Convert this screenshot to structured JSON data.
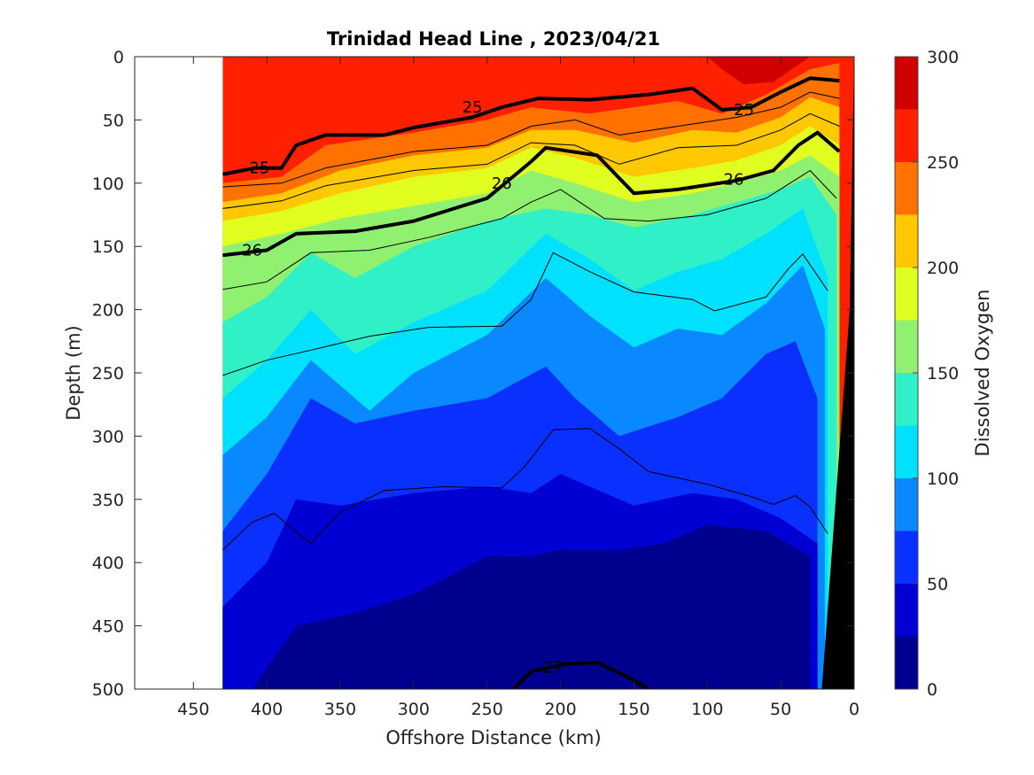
{
  "chart_data": {
    "type": "contour",
    "title": "Trinidad Head Line , 2023/04/21",
    "xlabel": "Offshore Distance (km)",
    "ylabel": "Depth (m)",
    "colorbar_label": "Dissolved Oxygen",
    "xlim": [
      490,
      0
    ],
    "ylim": [
      500,
      0
    ],
    "x_reversed": true,
    "y_reversed": true,
    "xticks": [
      450,
      400,
      350,
      300,
      250,
      200,
      150,
      100,
      50,
      0
    ],
    "yticks": [
      0,
      50,
      100,
      150,
      200,
      250,
      300,
      350,
      400,
      450,
      500
    ],
    "colorbar_ticks": [
      0,
      50,
      100,
      150,
      200,
      250,
      300
    ],
    "colorbar_range": [
      0,
      300
    ],
    "data_extent_km": [
      430,
      0
    ],
    "oxygen_levels": [
      {
        "value": 0,
        "color": "#00008f"
      },
      {
        "value": 25,
        "color": "#0000d2"
      },
      {
        "value": 50,
        "color": "#0a30ff"
      },
      {
        "value": 75,
        "color": "#0a88ff"
      },
      {
        "value": 100,
        "color": "#00e0ff"
      },
      {
        "value": 125,
        "color": "#30f0c8"
      },
      {
        "value": 150,
        "color": "#90f070"
      },
      {
        "value": 175,
        "color": "#e0ff20"
      },
      {
        "value": 200,
        "color": "#ffc800"
      },
      {
        "value": 225,
        "color": "#ff7200"
      },
      {
        "value": 250,
        "color": "#ff2000"
      },
      {
        "value": 275,
        "color": "#d00000"
      }
    ],
    "oxygen_contour_tops_m": [
      {
        "min_value": 275,
        "points": [
          [
            430,
            0
          ],
          [
            0,
            0
          ]
        ],
        "note": "surface band"
      },
      {
        "min_value": 250,
        "points": [
          [
            430,
            100
          ],
          [
            390,
            95
          ],
          [
            360,
            70
          ],
          [
            300,
            60
          ],
          [
            250,
            50
          ],
          [
            220,
            40
          ],
          [
            180,
            45
          ],
          [
            150,
            40
          ],
          [
            120,
            35
          ],
          [
            90,
            45
          ],
          [
            60,
            30
          ],
          [
            30,
            10
          ],
          [
            10,
            5
          ]
        ]
      },
      {
        "min_value": 225,
        "points": [
          [
            430,
            115
          ],
          [
            390,
            108
          ],
          [
            350,
            90
          ],
          [
            300,
            78
          ],
          [
            250,
            72
          ],
          [
            220,
            58
          ],
          [
            190,
            58
          ],
          [
            150,
            68
          ],
          [
            110,
            58
          ],
          [
            80,
            60
          ],
          [
            50,
            48
          ],
          [
            30,
            32
          ],
          [
            10,
            40
          ]
        ]
      },
      {
        "min_value": 200,
        "points": [
          [
            430,
            130
          ],
          [
            390,
            122
          ],
          [
            350,
            108
          ],
          [
            300,
            95
          ],
          [
            250,
            88
          ],
          [
            220,
            72
          ],
          [
            190,
            80
          ],
          [
            150,
            95
          ],
          [
            110,
            88
          ],
          [
            80,
            82
          ],
          [
            50,
            70
          ],
          [
            30,
            55
          ],
          [
            10,
            70
          ]
        ]
      },
      {
        "min_value": 175,
        "points": [
          [
            430,
            150
          ],
          [
            390,
            140
          ],
          [
            350,
            128
          ],
          [
            300,
            118
          ],
          [
            250,
            108
          ],
          [
            220,
            90
          ],
          [
            190,
            100
          ],
          [
            150,
            115
          ],
          [
            110,
            108
          ],
          [
            80,
            100
          ],
          [
            50,
            90
          ],
          [
            30,
            78
          ],
          [
            10,
            95
          ]
        ]
      },
      {
        "min_value": 150,
        "points": [
          [
            430,
            210
          ],
          [
            400,
            190
          ],
          [
            370,
            155
          ],
          [
            340,
            175
          ],
          [
            300,
            150
          ],
          [
            250,
            130
          ],
          [
            210,
            120
          ],
          [
            180,
            125
          ],
          [
            150,
            135
          ],
          [
            110,
            125
          ],
          [
            80,
            115
          ],
          [
            50,
            105
          ],
          [
            30,
            95
          ],
          [
            12,
            125
          ]
        ]
      },
      {
        "min_value": 125,
        "points": [
          [
            430,
            270
          ],
          [
            400,
            240
          ],
          [
            370,
            200
          ],
          [
            340,
            235
          ],
          [
            300,
            210
          ],
          [
            250,
            185
          ],
          [
            210,
            140
          ],
          [
            180,
            160
          ],
          [
            150,
            185
          ],
          [
            120,
            170
          ],
          [
            90,
            160
          ],
          [
            60,
            140
          ],
          [
            35,
            120
          ],
          [
            18,
            175
          ]
        ]
      },
      {
        "min_value": 100,
        "points": [
          [
            430,
            315
          ],
          [
            400,
            285
          ],
          [
            370,
            240
          ],
          [
            350,
            260
          ],
          [
            330,
            280
          ],
          [
            300,
            250
          ],
          [
            250,
            220
          ],
          [
            210,
            175
          ],
          [
            180,
            205
          ],
          [
            150,
            230
          ],
          [
            120,
            215
          ],
          [
            90,
            220
          ],
          [
            60,
            195
          ],
          [
            35,
            165
          ],
          [
            20,
            215
          ]
        ]
      },
      {
        "min_value": 75,
        "points": [
          [
            430,
            375
          ],
          [
            400,
            330
          ],
          [
            370,
            270
          ],
          [
            340,
            290
          ],
          [
            300,
            280
          ],
          [
            250,
            270
          ],
          [
            210,
            245
          ],
          [
            190,
            270
          ],
          [
            160,
            300
          ],
          [
            120,
            285
          ],
          [
            90,
            270
          ],
          [
            60,
            235
          ],
          [
            40,
            225
          ],
          [
            25,
            270
          ]
        ]
      },
      {
        "min_value": 50,
        "points": [
          [
            430,
            435
          ],
          [
            400,
            400
          ],
          [
            380,
            350
          ],
          [
            350,
            355
          ],
          [
            300,
            345
          ],
          [
            250,
            340
          ],
          [
            220,
            345
          ],
          [
            200,
            330
          ],
          [
            180,
            340
          ],
          [
            150,
            355
          ],
          [
            110,
            345
          ],
          [
            80,
            350
          ],
          [
            50,
            365
          ],
          [
            25,
            385
          ]
        ]
      },
      {
        "min_value": 25,
        "points": [
          [
            410,
            500
          ],
          [
            380,
            450
          ],
          [
            340,
            440
          ],
          [
            300,
            425
          ],
          [
            250,
            395
          ],
          [
            220,
            395
          ],
          [
            200,
            390
          ],
          [
            160,
            390
          ],
          [
            130,
            385
          ],
          [
            100,
            370
          ],
          [
            60,
            375
          ],
          [
            30,
            395
          ]
        ]
      },
      {
        "min_value": 0,
        "points": [
          [
            235,
            500
          ],
          [
            215,
            485
          ],
          [
            185,
            480
          ],
          [
            160,
            490
          ],
          [
            150,
            500
          ]
        ]
      }
    ],
    "density_contours": [
      {
        "label": "25",
        "bold": true,
        "points": [
          [
            430,
            93
          ],
          [
            408,
            88
          ],
          [
            390,
            88
          ],
          [
            380,
            70
          ],
          [
            360,
            62
          ],
          [
            320,
            62
          ],
          [
            300,
            56
          ],
          [
            260,
            48
          ],
          [
            240,
            40
          ],
          [
            215,
            33
          ],
          [
            180,
            34
          ],
          [
            140,
            30
          ],
          [
            110,
            25
          ],
          [
            90,
            42
          ],
          [
            70,
            40
          ],
          [
            50,
            28
          ],
          [
            30,
            17
          ],
          [
            10,
            19
          ]
        ]
      },
      {
        "label": "26",
        "bold": true,
        "points": [
          [
            430,
            157
          ],
          [
            400,
            153
          ],
          [
            380,
            140
          ],
          [
            340,
            138
          ],
          [
            300,
            130
          ],
          [
            250,
            112
          ],
          [
            220,
            83
          ],
          [
            210,
            72
          ],
          [
            175,
            78
          ],
          [
            150,
            108
          ],
          [
            120,
            105
          ],
          [
            80,
            98
          ],
          [
            55,
            90
          ],
          [
            38,
            70
          ],
          [
            25,
            60
          ],
          [
            10,
            75
          ]
        ]
      },
      {
        "label": "27",
        "bold": true,
        "points": [
          [
            232,
            500
          ],
          [
            220,
            486
          ],
          [
            195,
            480
          ],
          [
            175,
            479
          ],
          [
            155,
            490
          ],
          [
            140,
            500
          ]
        ]
      }
    ],
    "thin_contours": [
      [
        [
          430,
          103
        ],
        [
          390,
          100
        ],
        [
          360,
          88
        ],
        [
          300,
          75
        ],
        [
          250,
          70
        ],
        [
          220,
          55
        ],
        [
          190,
          50
        ],
        [
          160,
          62
        ],
        [
          120,
          55
        ],
        [
          80,
          48
        ],
        [
          50,
          40
        ],
        [
          30,
          28
        ],
        [
          10,
          33
        ]
      ],
      [
        [
          430,
          120
        ],
        [
          390,
          114
        ],
        [
          360,
          102
        ],
        [
          300,
          90
        ],
        [
          250,
          85
        ],
        [
          220,
          68
        ],
        [
          190,
          70
        ],
        [
          160,
          85
        ],
        [
          120,
          72
        ],
        [
          80,
          70
        ],
        [
          50,
          58
        ],
        [
          30,
          45
        ],
        [
          10,
          55
        ]
      ],
      [
        [
          430,
          184
        ],
        [
          400,
          178
        ],
        [
          370,
          155
        ],
        [
          330,
          153
        ],
        [
          290,
          143
        ],
        [
          240,
          128
        ],
        [
          220,
          115
        ],
        [
          200,
          105
        ],
        [
          170,
          128
        ],
        [
          140,
          130
        ],
        [
          100,
          125
        ],
        [
          60,
          112
        ],
        [
          30,
          90
        ],
        [
          12,
          112
        ]
      ],
      [
        [
          430,
          252
        ],
        [
          400,
          240
        ],
        [
          370,
          232
        ],
        [
          330,
          221
        ],
        [
          290,
          214
        ],
        [
          240,
          213
        ],
        [
          220,
          192
        ],
        [
          205,
          155
        ],
        [
          180,
          170
        ],
        [
          150,
          186
        ],
        [
          110,
          192
        ],
        [
          95,
          201
        ],
        [
          60,
          190
        ],
        [
          45,
          168
        ],
        [
          35,
          156
        ],
        [
          18,
          185
        ]
      ],
      [
        [
          430,
          390
        ],
        [
          410,
          368
        ],
        [
          395,
          361
        ],
        [
          380,
          376
        ],
        [
          370,
          385
        ],
        [
          350,
          360
        ],
        [
          320,
          343
        ],
        [
          280,
          340
        ],
        [
          240,
          341
        ],
        [
          225,
          325
        ],
        [
          205,
          295
        ],
        [
          180,
          294
        ],
        [
          160,
          310
        ],
        [
          140,
          328
        ],
        [
          100,
          338
        ],
        [
          70,
          348
        ],
        [
          55,
          354
        ],
        [
          40,
          347
        ],
        [
          30,
          356
        ],
        [
          18,
          377
        ]
      ]
    ],
    "seafloor_shelf": [
      [
        0,
        0
      ],
      [
        22,
        500
      ],
      [
        0,
        500
      ]
    ]
  }
}
